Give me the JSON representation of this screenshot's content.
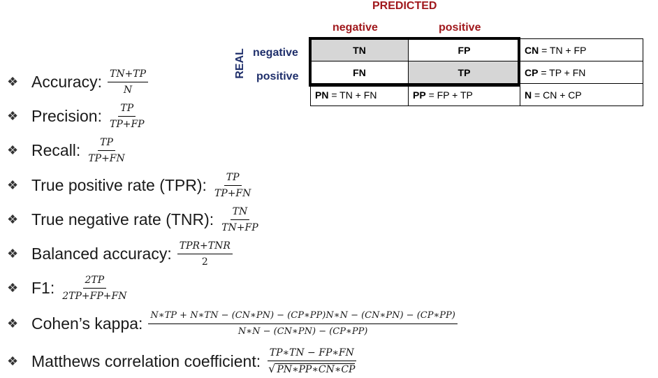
{
  "matrix": {
    "predicted_label": "PREDICTED",
    "real_label": "REAL",
    "col_negative": "negative",
    "col_positive": "positive",
    "row_negative": "negative",
    "row_positive": "positive",
    "tn": "TN",
    "fp": "FP",
    "fn": "FN",
    "tp": "TP",
    "cn_bold": "CN",
    "cn_rest": " = TN + FP",
    "cp_bold": "CP",
    "cp_rest": " = TP + FN",
    "pn_bold": "PN",
    "pn_rest": " = TN + FN",
    "pp_bold": "PP",
    "pp_rest": " = FP + TP",
    "n_bold": "N",
    "n_rest": " = CN + CP"
  },
  "bullet_symbol": "❖",
  "metrics": [
    {
      "label": "Accuracy:",
      "num": "TN+TP",
      "den": "N"
    },
    {
      "label": "Precision:",
      "num": "TP",
      "den": "TP+FP"
    },
    {
      "label": "Recall:",
      "num": "TP",
      "den": "TP+FN"
    },
    {
      "label": "True positive rate (TPR):",
      "num": "TP",
      "den": "TP+FN"
    },
    {
      "label": "True negative rate (TNR):",
      "num": "TN",
      "den": "TN+FP"
    },
    {
      "label": "Balanced accuracy:",
      "num": "TPR+TNR",
      "den": "2"
    },
    {
      "label": "F1:",
      "num": "2TP",
      "den": "2TP+FP+FN"
    },
    {
      "label": "Cohen’s kappa:",
      "num": "N∗TP + N∗TN − (CN∗PN) − (CP∗PP)N∗N − (CN∗PN) − (CP∗PP)",
      "den": "N∗N − (CN∗PN) − (CP∗PP)"
    },
    {
      "label": "Matthews correlation coefficient:",
      "num": "TP∗TN − FP∗FN",
      "den": "PN∗PP∗CN∗CP"
    }
  ]
}
